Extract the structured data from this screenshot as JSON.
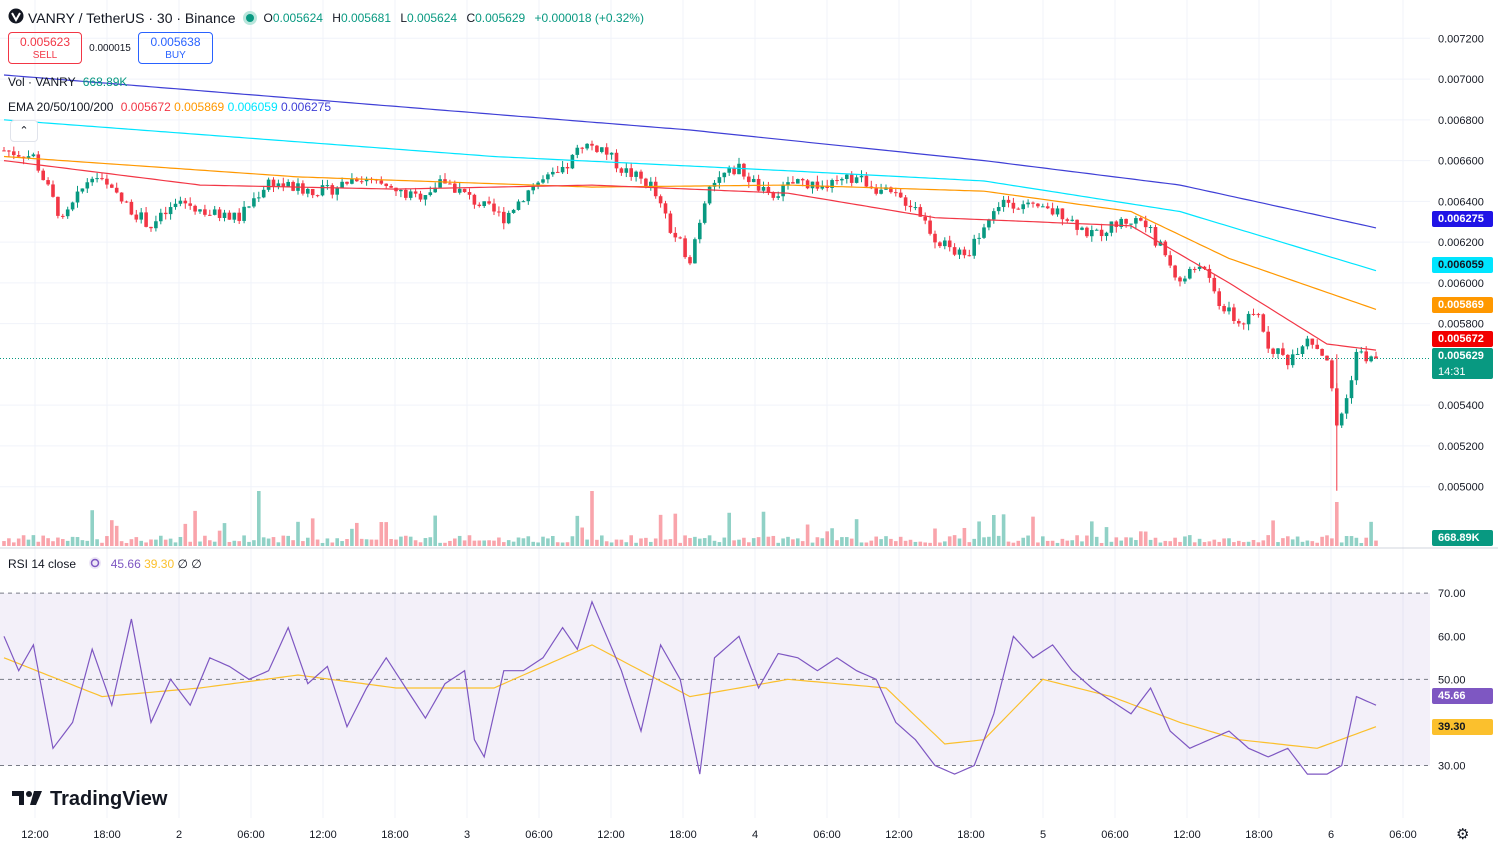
{
  "header": {
    "symbol": "VANRY / TetherUS · 30 · Binance",
    "open_key": "O",
    "open": "0.005624",
    "high_key": "H",
    "high": "0.005681",
    "low_key": "L",
    "low": "0.005624",
    "close_key": "C",
    "close": "0.005629",
    "change": "+0.000018 (+0.32%)",
    "colors": {
      "up": "#089981",
      "down": "#f23645"
    }
  },
  "trade": {
    "sell_price": "0.005623",
    "sell_label": "SELL",
    "spread": "0.000015",
    "buy_price": "0.005638",
    "buy_label": "BUY"
  },
  "legend": {
    "vol_label": "Vol · VANRY",
    "vol_value": "668.89K",
    "ema_label": "EMA 20/50/100/200",
    "ema20": "0.005672",
    "ema50": "0.005869",
    "ema100": "0.006059",
    "ema200": "0.006275",
    "rsi_label": "RSI 14 close",
    "rsi_value": "45.66",
    "rsi_ma": "39.30",
    "rsi_extra1": "∅",
    "rsi_extra2": "∅"
  },
  "price_labels": {
    "ema200": "0.006275",
    "ema100": "0.006059",
    "ema50": "0.005869",
    "ema20": "0.005672",
    "last": "0.005629",
    "countdown": "14:31",
    "volume": "668.89K",
    "rsi": "45.66",
    "rsi_ma": "39.30"
  },
  "branding": "TradingView",
  "icons": [
    "currency-icon",
    "collapse-chevron-icon",
    "refresh-icon",
    "tradingview-logo-icon",
    "gear-icon"
  ],
  "chart_data": [
    {
      "type": "candlestick",
      "y_ticks": [
        "0.007200",
        "0.007000",
        "0.006800",
        "0.006600",
        "0.006400",
        "0.006200",
        "0.006000",
        "0.005800",
        "0.005400",
        "0.005200",
        "0.005000"
      ],
      "ylim": [
        0.00492,
        0.00728
      ],
      "x_ticks": [
        "12:00",
        "18:00",
        "2",
        "06:00",
        "12:00",
        "18:00",
        "3",
        "06:00",
        "12:00",
        "18:00",
        "4",
        "06:00",
        "12:00",
        "18:00",
        "5",
        "06:00",
        "12:00",
        "18:00",
        "6",
        "06:00"
      ],
      "close_anchors": [
        [
          0,
          0.00665
        ],
        [
          6,
          0.00662
        ],
        [
          12,
          0.0063
        ],
        [
          18,
          0.00654
        ],
        [
          24,
          0.0064
        ],
        [
          30,
          0.00628
        ],
        [
          36,
          0.0064
        ],
        [
          42,
          0.00634
        ],
        [
          48,
          0.00632
        ],
        [
          54,
          0.0065
        ],
        [
          60,
          0.00646
        ],
        [
          66,
          0.00645
        ],
        [
          72,
          0.00652
        ],
        [
          78,
          0.00646
        ],
        [
          84,
          0.00642
        ],
        [
          90,
          0.0065
        ],
        [
          96,
          0.0064
        ],
        [
          102,
          0.00632
        ],
        [
          108,
          0.00648
        ],
        [
          114,
          0.00654
        ],
        [
          118,
          0.00668
        ],
        [
          122,
          0.00666
        ],
        [
          126,
          0.00656
        ],
        [
          132,
          0.00648
        ],
        [
          136,
          0.00626
        ],
        [
          140,
          0.00612
        ],
        [
          144,
          0.0065
        ],
        [
          150,
          0.00656
        ],
        [
          156,
          0.00642
        ],
        [
          162,
          0.0065
        ],
        [
          168,
          0.00647
        ],
        [
          174,
          0.00652
        ],
        [
          180,
          0.00644
        ],
        [
          186,
          0.00638
        ],
        [
          190,
          0.00622
        ],
        [
          196,
          0.00612
        ],
        [
          200,
          0.00628
        ],
        [
          204,
          0.00641
        ],
        [
          210,
          0.00636
        ],
        [
          216,
          0.00634
        ],
        [
          222,
          0.00623
        ],
        [
          228,
          0.0063
        ],
        [
          232,
          0.00631
        ],
        [
          236,
          0.00618
        ],
        [
          240,
          0.006
        ],
        [
          244,
          0.0061
        ],
        [
          248,
          0.0059
        ],
        [
          252,
          0.0058
        ],
        [
          256,
          0.00584
        ],
        [
          258,
          0.0057
        ],
        [
          262,
          0.00562
        ],
        [
          266,
          0.00574
        ],
        [
          270,
          0.00563
        ],
        [
          272,
          0.0053
        ],
        [
          274,
          0.00543
        ],
        [
          276,
          0.00566
        ],
        [
          280,
          0.00561
        ]
      ],
      "ema200": [
        [
          0,
          0.00702
        ],
        [
          140,
          0.00675
        ],
        [
          200,
          0.0066
        ],
        [
          240,
          0.00648
        ],
        [
          280,
          0.00627
        ]
      ],
      "ema100": [
        [
          0,
          0.0068
        ],
        [
          100,
          0.00662
        ],
        [
          160,
          0.00655
        ],
        [
          200,
          0.0065
        ],
        [
          240,
          0.00635
        ],
        [
          280,
          0.00606
        ]
      ],
      "ema50": [
        [
          0,
          0.00662
        ],
        [
          60,
          0.00652
        ],
        [
          120,
          0.00647
        ],
        [
          160,
          0.00648
        ],
        [
          200,
          0.00645
        ],
        [
          230,
          0.00635
        ],
        [
          250,
          0.00612
        ],
        [
          280,
          0.00587
        ]
      ],
      "ema20": [
        [
          0,
          0.0066
        ],
        [
          40,
          0.00648
        ],
        [
          80,
          0.00646
        ],
        [
          120,
          0.00648
        ],
        [
          160,
          0.00644
        ],
        [
          190,
          0.00632
        ],
        [
          230,
          0.00628
        ],
        [
          250,
          0.006
        ],
        [
          270,
          0.0057
        ],
        [
          280,
          0.00567
        ]
      ],
      "last_price": 0.005629
    },
    {
      "type": "bar",
      "name": "Volume",
      "last_value": "668.89K"
    },
    {
      "type": "line",
      "name": "RSI 14 close",
      "y_ticks": [
        "70.00",
        "60.00",
        "50.00",
        "30.00"
      ],
      "ylim": [
        22,
        77
      ],
      "bands": [
        30,
        50,
        70
      ],
      "rsi_anchors": [
        [
          0,
          60
        ],
        [
          3,
          52
        ],
        [
          6,
          58
        ],
        [
          10,
          34
        ],
        [
          14,
          40
        ],
        [
          18,
          57
        ],
        [
          22,
          44
        ],
        [
          26,
          64
        ],
        [
          30,
          40
        ],
        [
          34,
          50
        ],
        [
          38,
          44
        ],
        [
          42,
          55
        ],
        [
          46,
          53
        ],
        [
          50,
          50
        ],
        [
          54,
          52
        ],
        [
          58,
          62
        ],
        [
          62,
          49
        ],
        [
          66,
          53
        ],
        [
          70,
          39
        ],
        [
          74,
          48
        ],
        [
          78,
          55
        ],
        [
          82,
          48
        ],
        [
          86,
          41
        ],
        [
          90,
          49
        ],
        [
          94,
          52
        ],
        [
          96,
          36
        ],
        [
          98,
          32
        ],
        [
          102,
          52
        ],
        [
          106,
          52
        ],
        [
          110,
          55
        ],
        [
          114,
          62
        ],
        [
          117,
          57
        ],
        [
          120,
          68
        ],
        [
          123,
          60
        ],
        [
          126,
          52
        ],
        [
          130,
          38
        ],
        [
          134,
          58
        ],
        [
          138,
          50
        ],
        [
          142,
          28
        ],
        [
          145,
          55
        ],
        [
          150,
          60
        ],
        [
          154,
          48
        ],
        [
          158,
          56
        ],
        [
          162,
          55
        ],
        [
          166,
          52
        ],
        [
          170,
          55
        ],
        [
          174,
          52
        ],
        [
          178,
          50
        ],
        [
          182,
          40
        ],
        [
          186,
          36
        ],
        [
          190,
          30
        ],
        [
          194,
          28
        ],
        [
          198,
          30
        ],
        [
          202,
          42
        ],
        [
          206,
          60
        ],
        [
          210,
          55
        ],
        [
          214,
          58
        ],
        [
          218,
          52
        ],
        [
          222,
          48
        ],
        [
          226,
          45
        ],
        [
          230,
          42
        ],
        [
          234,
          48
        ],
        [
          238,
          38
        ],
        [
          242,
          34
        ],
        [
          246,
          36
        ],
        [
          250,
          38
        ],
        [
          254,
          34
        ],
        [
          258,
          32
        ],
        [
          262,
          34
        ],
        [
          266,
          28
        ],
        [
          270,
          28
        ],
        [
          273,
          30
        ],
        [
          276,
          46
        ],
        [
          280,
          44
        ]
      ],
      "rsi_ma_anchors": [
        [
          0,
          55
        ],
        [
          20,
          46
        ],
        [
          40,
          48
        ],
        [
          60,
          51
        ],
        [
          80,
          48
        ],
        [
          100,
          48
        ],
        [
          120,
          58
        ],
        [
          140,
          46
        ],
        [
          160,
          50
        ],
        [
          180,
          48
        ],
        [
          192,
          35
        ],
        [
          200,
          36
        ],
        [
          212,
          50
        ],
        [
          226,
          46
        ],
        [
          240,
          40
        ],
        [
          252,
          36
        ],
        [
          268,
          34
        ],
        [
          280,
          39
        ]
      ]
    }
  ]
}
